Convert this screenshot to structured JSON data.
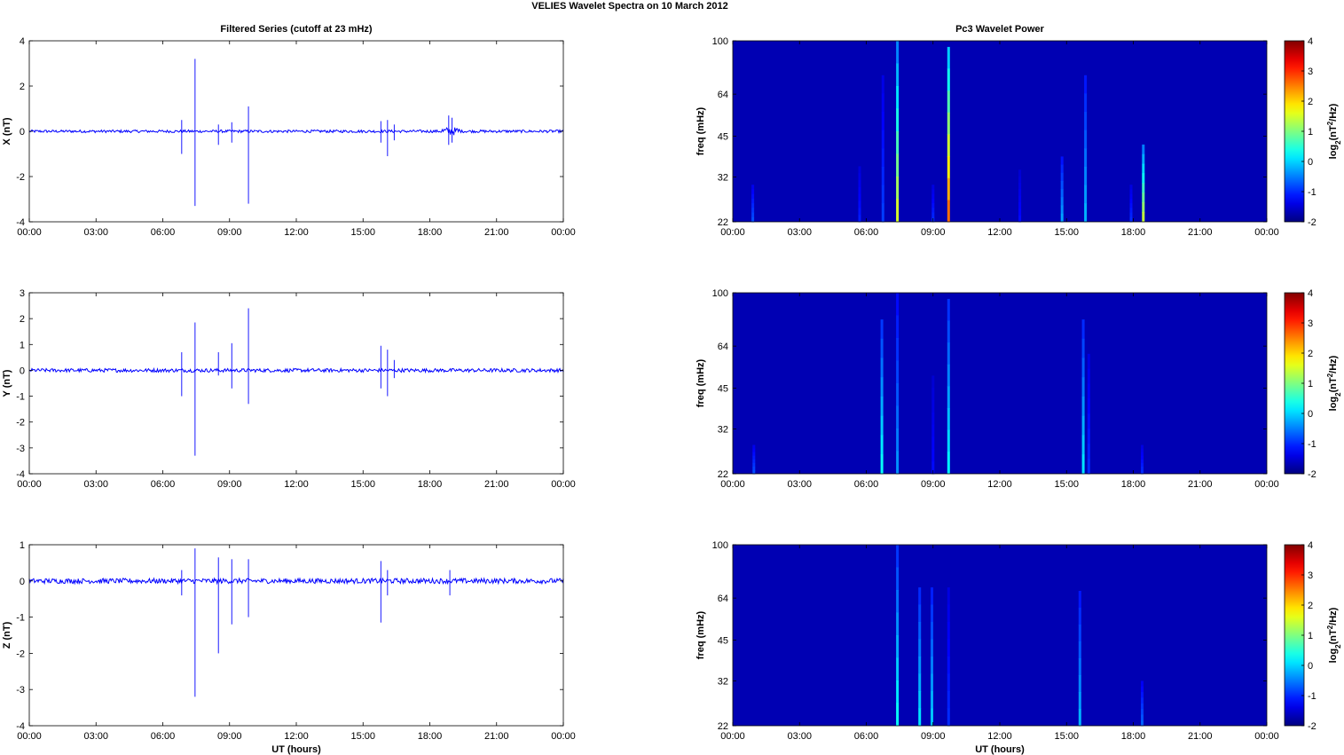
{
  "figure": {
    "title": "VELIES Wavelet Spectra on 10 March     2012"
  },
  "chart_data": [
    {
      "id": "x_series",
      "type": "line",
      "title": "Filtered Series (cutoff at 23 mHz)",
      "xlabel": "",
      "ylabel": "X (nT)",
      "xlim": [
        0,
        24
      ],
      "ylim": [
        -4,
        4
      ],
      "xticks": [
        "00:00",
        "03:00",
        "06:00",
        "09:00",
        "12:00",
        "15:00",
        "18:00",
        "21:00",
        "00:00"
      ],
      "yticks": [
        -4,
        -2,
        0,
        2,
        4
      ],
      "line_color": "#0000ff",
      "noise_amplitude": 0.06,
      "spikes": [
        {
          "t": 6.85,
          "min": -1.0,
          "max": 0.5
        },
        {
          "t": 7.45,
          "min": -3.3,
          "max": 3.2
        },
        {
          "t": 8.5,
          "min": -0.6,
          "max": 0.3
        },
        {
          "t": 9.1,
          "min": -0.5,
          "max": 0.4
        },
        {
          "t": 9.85,
          "min": -3.2,
          "max": 1.1
        },
        {
          "t": 15.8,
          "min": -0.5,
          "max": 0.45
        },
        {
          "t": 16.1,
          "min": -1.1,
          "max": 0.5
        },
        {
          "t": 16.4,
          "min": -0.4,
          "max": 0.3
        },
        {
          "t": 18.85,
          "min": -0.6,
          "max": 0.7
        },
        {
          "t": 19.0,
          "min": -0.5,
          "max": 0.6
        }
      ]
    },
    {
      "id": "y_series",
      "type": "line",
      "title": "",
      "xlabel": "",
      "ylabel": "Y (nT)",
      "xlim": [
        0,
        24
      ],
      "ylim": [
        -4,
        3
      ],
      "xticks": [
        "00:00",
        "03:00",
        "06:00",
        "09:00",
        "12:00",
        "15:00",
        "18:00",
        "21:00",
        "00:00"
      ],
      "yticks": [
        -4,
        -3,
        -2,
        -1,
        0,
        1,
        2,
        3
      ],
      "line_color": "#0000ff",
      "noise_amplitude": 0.07,
      "spikes": [
        {
          "t": 6.85,
          "min": -1.0,
          "max": 0.7
        },
        {
          "t": 7.45,
          "min": -3.3,
          "max": 1.85
        },
        {
          "t": 8.5,
          "min": -0.2,
          "max": 0.7
        },
        {
          "t": 9.1,
          "min": -0.7,
          "max": 1.05
        },
        {
          "t": 9.85,
          "min": -1.3,
          "max": 2.4
        },
        {
          "t": 15.8,
          "min": -0.7,
          "max": 0.95
        },
        {
          "t": 16.1,
          "min": -1.0,
          "max": 0.8
        },
        {
          "t": 16.4,
          "min": -0.3,
          "max": 0.4
        }
      ]
    },
    {
      "id": "z_series",
      "type": "line",
      "title": "",
      "xlabel": "UT (hours)",
      "ylabel": "Z (nT)",
      "xlim": [
        0,
        24
      ],
      "ylim": [
        -4,
        1
      ],
      "xticks": [
        "00:00",
        "03:00",
        "06:00",
        "09:00",
        "12:00",
        "15:00",
        "18:00",
        "21:00",
        "00:00"
      ],
      "yticks": [
        -4,
        -3,
        -2,
        -1,
        0,
        1
      ],
      "line_color": "#0000ff",
      "noise_amplitude": 0.07,
      "spikes": [
        {
          "t": 6.85,
          "min": -0.4,
          "max": 0.3
        },
        {
          "t": 7.45,
          "min": -3.2,
          "max": 0.9
        },
        {
          "t": 8.5,
          "min": -2.0,
          "max": 0.65
        },
        {
          "t": 9.1,
          "min": -1.2,
          "max": 0.6
        },
        {
          "t": 9.85,
          "min": -1.0,
          "max": 0.6
        },
        {
          "t": 15.8,
          "min": -1.15,
          "max": 0.55
        },
        {
          "t": 16.1,
          "min": -0.4,
          "max": 0.3
        },
        {
          "t": 18.9,
          "min": -0.4,
          "max": 0.3
        }
      ]
    },
    {
      "id": "x_power",
      "type": "heatmap",
      "title": "Pc3 Wavelet Power",
      "xlabel": "",
      "ylabel": "freq (mHz)",
      "colorbar_label": "log2(nT2/Hz)",
      "xlim": [
        0,
        24
      ],
      "ylim": [
        22,
        100
      ],
      "xticks": [
        "00:00",
        "03:00",
        "06:00",
        "09:00",
        "12:00",
        "15:00",
        "18:00",
        "21:00",
        "00:00"
      ],
      "yticks": [
        22,
        32,
        45,
        64,
        100
      ],
      "clim": [
        -2,
        4
      ],
      "cticks": [
        -2,
        -1,
        0,
        1,
        2,
        3,
        4
      ],
      "background_value": -1.7,
      "events": [
        {
          "t": 0.9,
          "fmax": 30,
          "peak": -0.8
        },
        {
          "t": 5.7,
          "fmax": 35,
          "peak": -1.1
        },
        {
          "t": 6.75,
          "fmax": 75,
          "peak": -0.9
        },
        {
          "t": 7.4,
          "fmax": 100,
          "peak": 1.5
        },
        {
          "t": 9.0,
          "fmax": 30,
          "peak": -1.0
        },
        {
          "t": 9.7,
          "fmax": 95,
          "peak": 2.6
        },
        {
          "t": 12.9,
          "fmax": 34,
          "peak": -1.2
        },
        {
          "t": 14.8,
          "fmax": 38,
          "peak": -0.3
        },
        {
          "t": 15.85,
          "fmax": 75,
          "peak": -0.2
        },
        {
          "t": 17.9,
          "fmax": 30,
          "peak": -1.0
        },
        {
          "t": 18.45,
          "fmax": 42,
          "peak": 1.4
        }
      ]
    },
    {
      "id": "y_power",
      "type": "heatmap",
      "title": "",
      "xlabel": "",
      "ylabel": "freq (mHz)",
      "colorbar_label": "log2(nT2/Hz)",
      "xlim": [
        0,
        24
      ],
      "ylim": [
        22,
        100
      ],
      "xticks": [
        "00:00",
        "03:00",
        "06:00",
        "09:00",
        "12:00",
        "15:00",
        "18:00",
        "21:00",
        "00:00"
      ],
      "yticks": [
        22,
        32,
        45,
        64,
        100
      ],
      "clim": [
        -2,
        4
      ],
      "cticks": [
        -2,
        -1,
        0,
        1,
        2,
        3,
        4
      ],
      "background_value": -1.7,
      "events": [
        {
          "t": 0.95,
          "fmax": 28,
          "peak": -0.8
        },
        {
          "t": 6.7,
          "fmax": 80,
          "peak": 0.3
        },
        {
          "t": 7.4,
          "fmax": 100,
          "peak": -0.4
        },
        {
          "t": 9.0,
          "fmax": 50,
          "peak": -1.2
        },
        {
          "t": 9.7,
          "fmax": 95,
          "peak": 0.2
        },
        {
          "t": 15.75,
          "fmax": 80,
          "peak": 0.1
        },
        {
          "t": 16.0,
          "fmax": 60,
          "peak": -1.0
        },
        {
          "t": 18.4,
          "fmax": 28,
          "peak": -1.0
        }
      ]
    },
    {
      "id": "z_power",
      "type": "heatmap",
      "title": "",
      "xlabel": "UT (hours)",
      "ylabel": "freq (mHz)",
      "colorbar_label": "log2(nT2/Hz)",
      "xlim": [
        0,
        24
      ],
      "ylim": [
        22,
        100
      ],
      "xticks": [
        "00:00",
        "03:00",
        "06:00",
        "09:00",
        "12:00",
        "15:00",
        "18:00",
        "21:00",
        "00:00"
      ],
      "yticks": [
        22,
        32,
        45,
        64,
        100
      ],
      "clim": [
        -2,
        4
      ],
      "cticks": [
        -2,
        -1,
        0,
        1,
        2,
        3,
        4
      ],
      "background_value": -1.7,
      "events": [
        {
          "t": 7.4,
          "fmax": 100,
          "peak": 0.3
        },
        {
          "t": 8.4,
          "fmax": 70,
          "peak": 0.1
        },
        {
          "t": 8.95,
          "fmax": 70,
          "peak": -0.1
        },
        {
          "t": 9.7,
          "fmax": 70,
          "peak": -1.0
        },
        {
          "t": 15.6,
          "fmax": 68,
          "peak": -0.2
        },
        {
          "t": 18.4,
          "fmax": 32,
          "peak": -0.7
        }
      ]
    }
  ]
}
